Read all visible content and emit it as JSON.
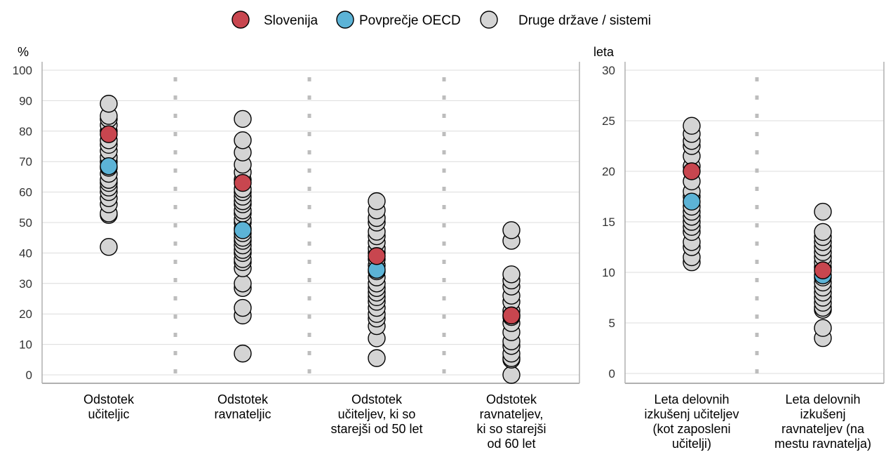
{
  "legend": [
    {
      "label": "Slovenija",
      "color": "#c8464f"
    },
    {
      "label": "Povprečje OECD",
      "color": "#5cb3d6"
    },
    {
      "label": "Druge države / sistemi",
      "color": "#d4d4d4"
    }
  ],
  "chart_data": [
    {
      "type": "scatter",
      "unit_label": "%",
      "ylim": [
        0,
        100
      ],
      "yticks": [
        0,
        10,
        20,
        30,
        40,
        50,
        60,
        70,
        80,
        90,
        100
      ],
      "grid": true,
      "categories": [
        [
          "Odstotek",
          "učiteljic"
        ],
        [
          "Odstotek",
          "ravnateljic"
        ],
        [
          "Odstotek",
          "učiteljev, ki so",
          "starejši od 50 let"
        ],
        [
          "Odstotek",
          "ravnateljev,",
          "ki so starejši",
          "od 60 let"
        ]
      ],
      "others": [
        [
          42,
          52.5,
          53,
          56,
          58,
          60,
          61.5,
          63,
          64,
          66,
          68,
          70,
          71.5,
          73.5,
          75.5,
          77,
          80,
          82,
          84,
          85,
          89
        ],
        [
          7,
          19.5,
          22,
          28.5,
          30,
          35,
          37,
          38,
          40,
          41,
          42.5,
          44,
          45,
          46.5,
          48,
          50,
          51,
          53,
          54,
          56,
          57,
          58.5,
          60,
          61,
          64,
          66.5,
          69,
          73,
          77,
          84
        ],
        [
          5.5,
          12,
          16,
          18.5,
          20,
          22,
          24,
          25.5,
          27,
          28.5,
          30,
          32,
          34,
          36,
          38,
          40,
          41.5,
          43.5,
          45.5,
          47,
          50,
          51.5,
          54,
          57
        ],
        [
          0,
          5,
          5.5,
          7,
          9.5,
          11,
          14,
          17,
          19,
          21,
          24,
          26,
          29,
          31,
          33,
          44,
          47.5
        ]
      ],
      "slovenia": [
        79,
        63,
        39,
        19.5
      ],
      "oecd": [
        68.5,
        47.5,
        34.5,
        19.5
      ]
    },
    {
      "type": "scatter",
      "unit_label": "leta",
      "ylim": [
        0,
        30
      ],
      "yticks": [
        0,
        5,
        10,
        15,
        20,
        25,
        30
      ],
      "grid": true,
      "categories": [
        [
          "Leta delovnih",
          "izkušenj učiteljev",
          "(kot zaposleni",
          "učitelji)"
        ],
        [
          "Leta delovnih",
          "izkušenj",
          "ravnateljev  (na",
          "mestu ravnatelja)"
        ]
      ],
      "others": [
        [
          11,
          11.5,
          12.5,
          13,
          14,
          14.5,
          15,
          15.5,
          16,
          16.5,
          17.5,
          18,
          19,
          20.5,
          21.5,
          22.5,
          23,
          23.7,
          24.5
        ],
        [
          3.5,
          4.5,
          6.3,
          6.5,
          7,
          7.5,
          8,
          8.5,
          9,
          9.5,
          10.5,
          11,
          11.5,
          12,
          12.5,
          13,
          13.5,
          14,
          16
        ]
      ],
      "slovenia": [
        20,
        10.2
      ],
      "oecd": [
        17,
        9.7
      ]
    }
  ]
}
